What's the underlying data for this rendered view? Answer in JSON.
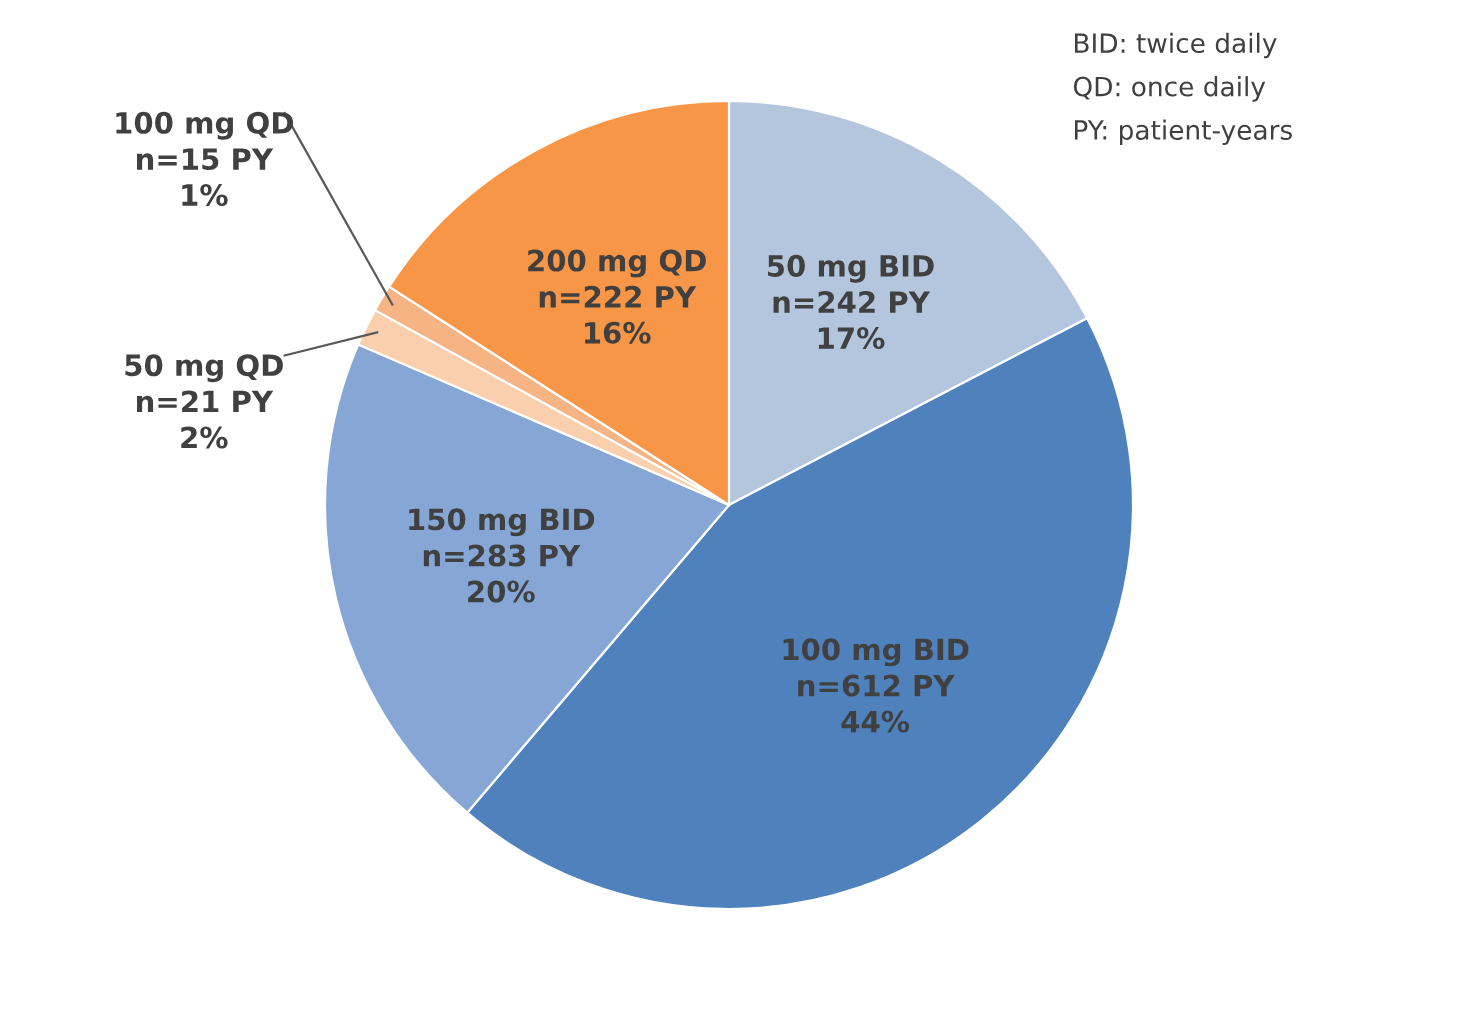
{
  "chart_data": {
    "type": "pie",
    "categories": [
      "50 mg BID",
      "100 mg BID",
      "150 mg BID",
      "50 mg QD",
      "100 mg QD",
      "200 mg QD"
    ],
    "values": [
      242,
      612,
      283,
      21,
      15,
      222
    ],
    "value_labels": [
      "n=242 PY\n17%",
      "n=612 PY\n44%",
      "n=283 PY\n20%",
      "n=21 PY\n2%",
      "n=15 PY\n1%",
      "n=222 PY\n16%"
    ],
    "colors": [
      "#b4c6de",
      "#4f81bd",
      "#86a6d6",
      "#f9cfae",
      "#f6b383",
      "#f79646"
    ],
    "annotations": [
      "BID: twice daily",
      "QD: once daily",
      "PY: patient-years"
    ],
    "legend": false
  }
}
